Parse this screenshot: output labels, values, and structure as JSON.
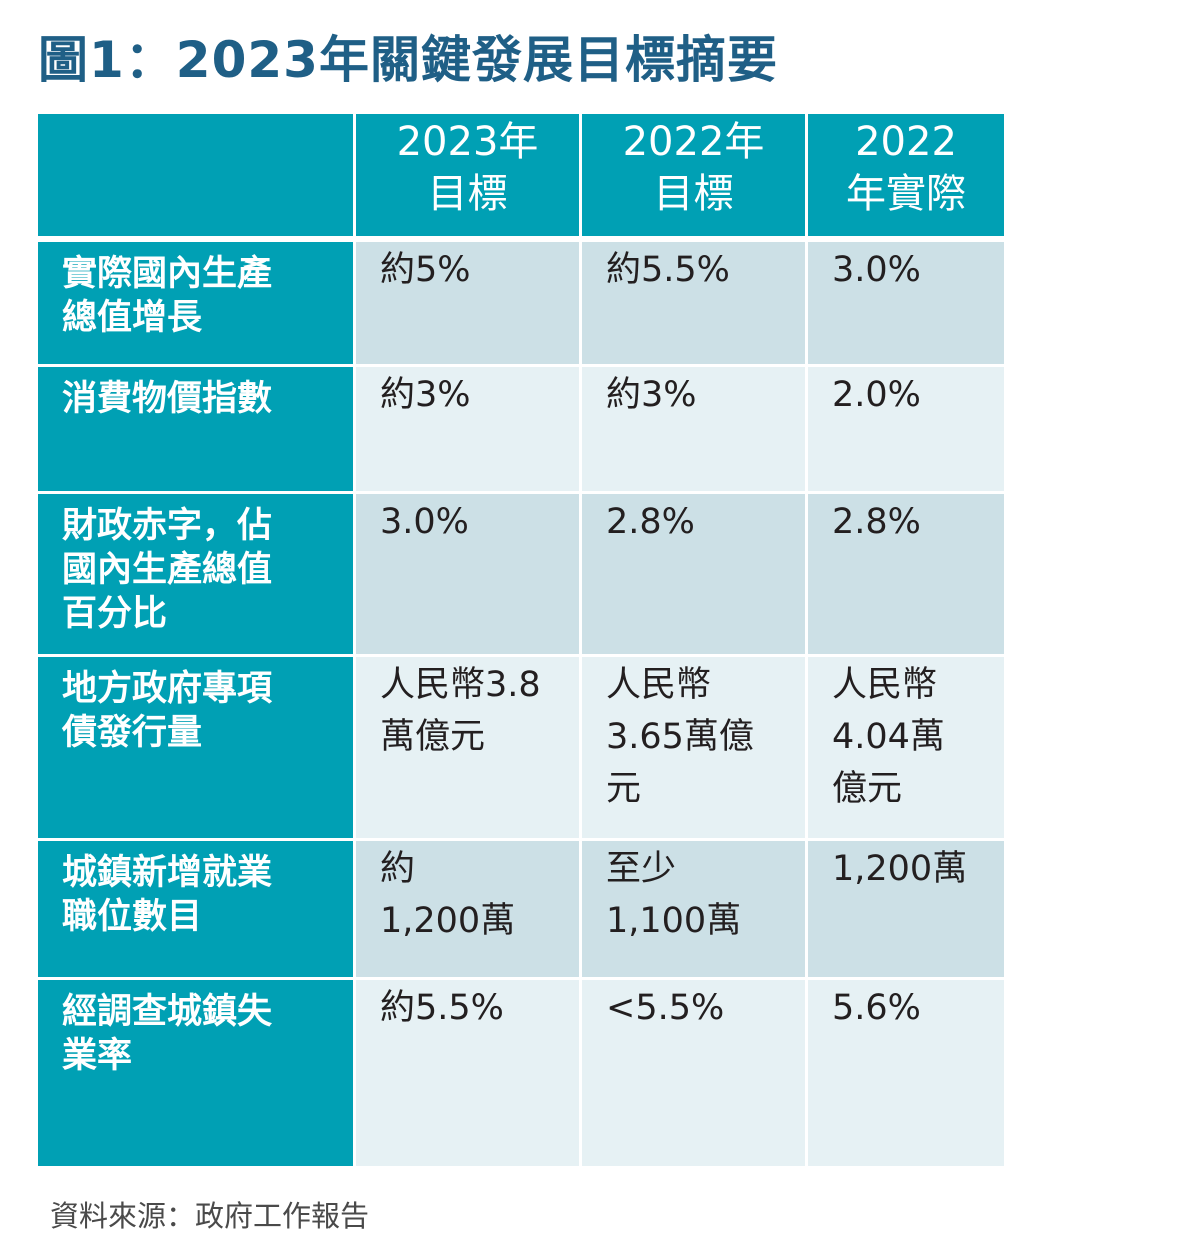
{
  "title": "圖1：2023年關鍵發展目標摘要",
  "chart_data": {
    "type": "table",
    "columns": [
      "",
      "2023年\n目標",
      "2022年\n目標",
      "2022\n年實際"
    ],
    "rows": [
      {
        "label": "實際國內生產\n總值增長",
        "values": [
          "約5%",
          "約5.5%",
          "3.0%"
        ]
      },
      {
        "label": "消費物價指數",
        "values": [
          "約3%",
          "約3%",
          "2.0%"
        ]
      },
      {
        "label": "財政赤字，佔\n國內生產總值\n百分比",
        "values": [
          "3.0%",
          "2.8%",
          "2.8%"
        ]
      },
      {
        "label": "地方政府專項\n債發行量",
        "values": [
          "人民幣3.8\n萬億元",
          "人民幣\n3.65萬億\n元",
          "人民幣\n4.04萬\n億元"
        ]
      },
      {
        "label": "城鎮新增就業\n職位數目",
        "values": [
          "約\n1,200萬",
          "至少\n1,100萬",
          "1,200萬"
        ]
      },
      {
        "label": "經調查城鎮失\n業率",
        "values": [
          "約5.5%",
          "<5.5%",
          "5.6%"
        ]
      }
    ]
  },
  "source": "資料來源：政府工作報告",
  "colors": {
    "title": "#1f5f86",
    "header": "#00a0b4",
    "row_shade_a": "#cce0e6",
    "row_shade_b": "#e6f1f4"
  }
}
